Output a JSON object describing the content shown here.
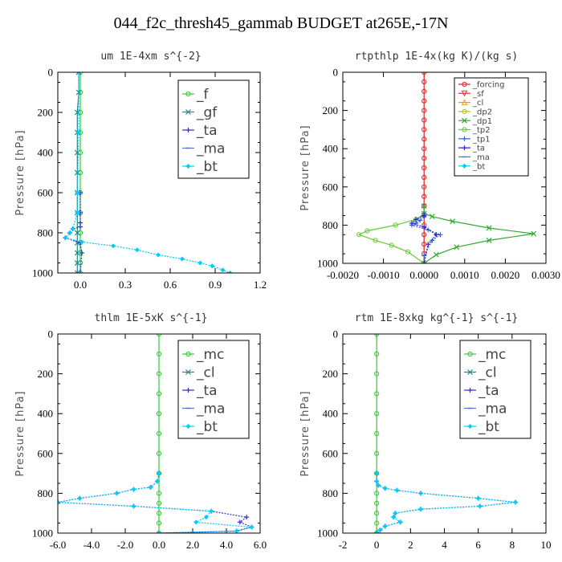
{
  "title": "044_f2c_thresh45_gammab  BUDGET at265E,-17N",
  "chart_data": [
    {
      "type": "line",
      "title": "um   1E-4xm s^{-2}",
      "ylabel": "Pressure [hPa]",
      "xlim": [
        -0.15,
        1.2
      ],
      "ylim": [
        1000,
        0
      ],
      "xticks": [
        "0.0",
        "0.3",
        "0.6",
        "0.9",
        "1.2"
      ],
      "xtick_values": [
        0,
        0.3,
        0.6,
        0.9,
        1.2
      ],
      "yticks": [
        "0",
        "200",
        "400",
        "600",
        "800",
        "1000"
      ],
      "ytick_values": [
        0,
        200,
        400,
        600,
        800,
        1000
      ],
      "legend_font": 17,
      "series": [
        {
          "name": "_f",
          "color": "#33cc33",
          "marker": "o",
          "x": [
            0,
            0,
            0,
            0,
            0,
            0,
            0,
            0,
            0,
            0,
            0,
            0,
            0
          ],
          "y": [
            0,
            100,
            200,
            300,
            400,
            500,
            600,
            700,
            800,
            850,
            900,
            950,
            1000
          ]
        },
        {
          "name": "_gf",
          "color": "#1a8a8a",
          "marker": "x",
          "x": [
            -0.01,
            -0.01,
            -0.02,
            -0.02,
            -0.02,
            -0.02,
            -0.02,
            -0.02,
            -0.02,
            -0.02,
            -0.02,
            -0.02,
            -0.02
          ],
          "y": [
            0,
            100,
            200,
            300,
            400,
            500,
            600,
            700,
            800,
            850,
            900,
            950,
            1000
          ]
        },
        {
          "name": "_ta",
          "color": "#3333cc",
          "marker": "+",
          "x": [
            0,
            0,
            0,
            0,
            -0.05,
            -0.07,
            -0.1,
            0,
            0.01,
            0
          ],
          "y": [
            600,
            700,
            750,
            770,
            780,
            800,
            825,
            850,
            900,
            1000
          ]
        },
        {
          "name": "_ma",
          "color": "#5577cc",
          "marker": "-",
          "x": [],
          "y": []
        },
        {
          "name": "_bt",
          "color": "#00ccff",
          "marker": "d",
          "x": [
            -0.01,
            -0.01,
            -0.02,
            -0.02,
            -0.05,
            -0.07,
            -0.1,
            0.01,
            0.22,
            0.38,
            0.52,
            0.68,
            0.8,
            0.88,
            0.95,
            1.0
          ],
          "y": [
            0,
            300,
            600,
            700,
            780,
            800,
            825,
            845,
            865,
            885,
            910,
            930,
            950,
            965,
            985,
            1000
          ]
        }
      ]
    },
    {
      "type": "line",
      "title": "rtpthlp   1E-4x(kg K)/(kg s)",
      "ylabel": "Pressure [hPa]",
      "xlim": [
        -0.002,
        0.003
      ],
      "ylim": [
        1000,
        0
      ],
      "xticks": [
        "-0.0020",
        "-0.0010",
        "0.0000",
        "0.0010",
        "0.0020",
        "0.0030"
      ],
      "xtick_values": [
        -0.002,
        -0.001,
        0,
        0.001,
        0.002,
        0.003
      ],
      "yticks": [
        "0",
        "200",
        "400",
        "600",
        "800",
        "1000"
      ],
      "ytick_values": [
        0,
        200,
        400,
        600,
        800,
        1000
      ],
      "legend_font": 10,
      "series": [
        {
          "name": "_forcing",
          "color": "#dd2222",
          "marker": "o",
          "x": [
            0,
            0,
            0,
            0,
            0,
            0,
            0,
            0,
            0,
            0,
            0,
            0,
            0,
            0,
            0,
            0,
            0,
            0,
            0,
            0,
            0
          ],
          "y": [
            0,
            50,
            100,
            150,
            200,
            250,
            300,
            350,
            400,
            450,
            500,
            550,
            600,
            650,
            700,
            750,
            800,
            850,
            900,
            950,
            1000
          ]
        },
        {
          "name": "_sf",
          "color": "#dd3333",
          "marker": "v",
          "x": [],
          "y": []
        },
        {
          "name": "_cl",
          "color": "#ee9922",
          "marker": "^",
          "x": [],
          "y": []
        },
        {
          "name": "_dp2",
          "color": "#bbbb22",
          "marker": "o",
          "x": [],
          "y": []
        },
        {
          "name": "_dp1",
          "color": "#33aa33",
          "marker": "x",
          "x": [
            0,
            0,
            0.0002,
            0.0007,
            0.0016,
            0.0027,
            0.0016,
            0.0008,
            0.0003,
            0
          ],
          "y": [
            700,
            740,
            755,
            780,
            815,
            845,
            880,
            915,
            955,
            1000
          ]
        },
        {
          "name": "_tp2",
          "color": "#66cc33",
          "marker": "o",
          "x": [
            0,
            -0.0002,
            -0.0007,
            -0.0014,
            -0.0016,
            -0.0012,
            -0.0008,
            -0.0004,
            0
          ],
          "y": [
            740,
            770,
            800,
            830,
            850,
            880,
            905,
            940,
            1000
          ]
        },
        {
          "name": "_tp1",
          "color": "#3366cc",
          "marker": "+",
          "x": [
            0,
            0,
            -0.0001,
            -0.0002,
            -0.0003,
            0.0001,
            0.0004,
            0.0002,
            0,
            0
          ],
          "y": [
            740,
            755,
            775,
            790,
            800,
            825,
            850,
            880,
            960,
            1000
          ]
        },
        {
          "name": "_ta",
          "color": "#2222cc",
          "marker": "+",
          "x": [
            0,
            -0.0002,
            -0.0003,
            0,
            0.0003,
            0.0001,
            0
          ],
          "y": [
            750,
            770,
            790,
            810,
            850,
            900,
            1000
          ]
        },
        {
          "name": "_ma",
          "color": "#5577cc",
          "marker": "-",
          "x": [],
          "y": []
        },
        {
          "name": "_bt",
          "color": "#00ccff",
          "marker": "d",
          "x": [],
          "y": []
        }
      ]
    },
    {
      "type": "line",
      "title": "thlm   1E-5xK s^{-1}",
      "ylabel": "Pressure [hPa]",
      "xlim": [
        -6,
        6
      ],
      "ylim": [
        1000,
        0
      ],
      "xticks": [
        "-6.0",
        "-4.0",
        "-2.0",
        "0.0",
        "2.0",
        "4.0",
        "6.0"
      ],
      "xtick_values": [
        -6,
        -4,
        -2,
        0,
        2,
        4,
        6
      ],
      "yticks": [
        "0",
        "200",
        "400",
        "600",
        "800",
        "1000"
      ],
      "ytick_values": [
        0,
        200,
        400,
        600,
        800,
        1000
      ],
      "legend_font": 17,
      "series": [
        {
          "name": "_mc",
          "color": "#33cc33",
          "marker": "o",
          "x": [
            0,
            0,
            0,
            0,
            0,
            0,
            0,
            0,
            0,
            0,
            0,
            0,
            0
          ],
          "y": [
            0,
            100,
            200,
            300,
            400,
            500,
            600,
            700,
            800,
            850,
            900,
            950,
            1000
          ]
        },
        {
          "name": "_cl",
          "color": "#1a8a8a",
          "marker": "x",
          "x": [],
          "y": []
        },
        {
          "name": "_ta",
          "color": "#3333cc",
          "marker": "+",
          "x": [
            0,
            -0.1,
            -0.5,
            -1.5,
            -2.5,
            -4.7,
            -6,
            -1.5,
            3.1,
            5.2,
            4.8,
            5.5,
            4.6,
            0
          ],
          "y": [
            700,
            740,
            770,
            780,
            800,
            825,
            845,
            865,
            890,
            920,
            945,
            970,
            990,
            1000
          ]
        },
        {
          "name": "_ma",
          "color": "#5577cc",
          "marker": "-",
          "x": [],
          "y": []
        },
        {
          "name": "_bt",
          "color": "#00ccff",
          "marker": "d",
          "x": [
            0,
            -0.1,
            -0.5,
            -1.5,
            -2.5,
            -4.7,
            -6,
            -1.5,
            3.1,
            2.8,
            2.2,
            5.5,
            4.6,
            0
          ],
          "y": [
            700,
            740,
            770,
            780,
            800,
            825,
            845,
            865,
            890,
            920,
            945,
            970,
            990,
            1000
          ]
        }
      ]
    },
    {
      "type": "line",
      "title": "rtm   1E-8xkg kg^{-1} s^{-1}",
      "ylabel": "Pressure [hPa]",
      "xlim": [
        -2,
        10
      ],
      "ylim": [
        1000,
        0
      ],
      "xticks": [
        "-2",
        "0",
        "2",
        "4",
        "6",
        "8",
        "10"
      ],
      "xtick_values": [
        -2,
        0,
        2,
        4,
        6,
        8,
        10
      ],
      "yticks": [
        "0",
        "200",
        "400",
        "600",
        "800",
        "1000"
      ],
      "ytick_values": [
        0,
        200,
        400,
        600,
        800,
        1000
      ],
      "legend_font": 17,
      "series": [
        {
          "name": "_mc",
          "color": "#33cc33",
          "marker": "o",
          "x": [
            0,
            0,
            0,
            0,
            0,
            0,
            0,
            0,
            0,
            0,
            0,
            0,
            0
          ],
          "y": [
            0,
            100,
            200,
            300,
            400,
            500,
            600,
            700,
            800,
            850,
            900,
            950,
            1000
          ]
        },
        {
          "name": "_cl",
          "color": "#1a8a8a",
          "marker": "x",
          "x": [],
          "y": []
        },
        {
          "name": "_ta",
          "color": "#3333cc",
          "marker": "+",
          "x": [
            0,
            0,
            0.1,
            0.5,
            1.2,
            2.6,
            6,
            8.2,
            6.1,
            2.6,
            1.1,
            1.0,
            1.4,
            0.5,
            0.2,
            0
          ],
          "y": [
            700,
            740,
            760,
            775,
            785,
            800,
            825,
            845,
            865,
            880,
            900,
            920,
            945,
            965,
            985,
            1000
          ]
        },
        {
          "name": "_ma",
          "color": "#5577cc",
          "marker": "-",
          "x": [],
          "y": []
        },
        {
          "name": "_bt",
          "color": "#00ccff",
          "marker": "d",
          "x": [
            0,
            0,
            0.1,
            0.5,
            1.2,
            2.6,
            6,
            8.2,
            6.1,
            2.6,
            1.1,
            1.0,
            1.4,
            0.5,
            0.2,
            0
          ],
          "y": [
            700,
            740,
            760,
            775,
            785,
            800,
            825,
            845,
            865,
            880,
            900,
            920,
            945,
            965,
            985,
            1000
          ]
        }
      ]
    }
  ]
}
